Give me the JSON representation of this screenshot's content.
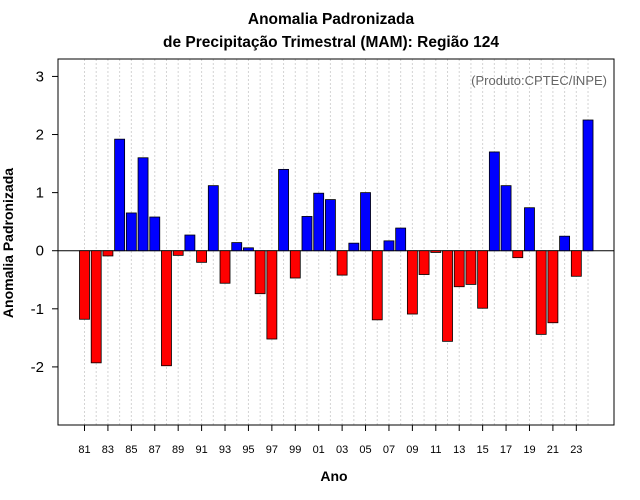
{
  "chart_data": {
    "type": "bar",
    "title_line1": "Anomalia Padronizada",
    "title_line2": "de Precipitação Trimestral (MAM): Região 124",
    "xlabel": "Ano",
    "ylabel": "Anomalia Padronizada",
    "credit": "(Produto:CPTEC/INPE)",
    "ylim": [
      -3.0,
      3.3
    ],
    "yticks": [
      -2,
      -1,
      0,
      1,
      2,
      3
    ],
    "grid": true,
    "positive_color": "#0000ff",
    "negative_color": "#ff0000",
    "categories": [
      "81",
      "82",
      "83",
      "84",
      "85",
      "86",
      "87",
      "88",
      "89",
      "90",
      "91",
      "92",
      "93",
      "94",
      "95",
      "96",
      "97",
      "98",
      "99",
      "00",
      "01",
      "02",
      "03",
      "04",
      "05",
      "06",
      "07",
      "08",
      "09",
      "10",
      "11",
      "12",
      "13",
      "14",
      "15",
      "16",
      "17",
      "18",
      "19",
      "20",
      "21",
      "22",
      "23",
      "24"
    ],
    "xtick_labels": [
      "81",
      "83",
      "85",
      "87",
      "89",
      "91",
      "93",
      "95",
      "97",
      "99",
      "01",
      "03",
      "05",
      "07",
      "09",
      "11",
      "13",
      "15",
      "17",
      "19",
      "21",
      "23"
    ],
    "values": [
      -1.18,
      -1.93,
      -0.09,
      1.92,
      0.65,
      1.6,
      0.58,
      -1.98,
      -0.08,
      0.27,
      -0.2,
      1.12,
      -0.56,
      0.14,
      0.05,
      -0.74,
      -1.52,
      1.4,
      -0.47,
      0.59,
      0.99,
      0.88,
      -0.42,
      0.13,
      1.0,
      -1.19,
      0.17,
      0.39,
      -1.09,
      -0.41,
      -0.03,
      -1.56,
      -0.62,
      -0.58,
      -0.99,
      1.7,
      1.12,
      -0.12,
      0.74,
      -1.44,
      -1.24,
      0.25,
      -0.44,
      2.25
    ]
  }
}
